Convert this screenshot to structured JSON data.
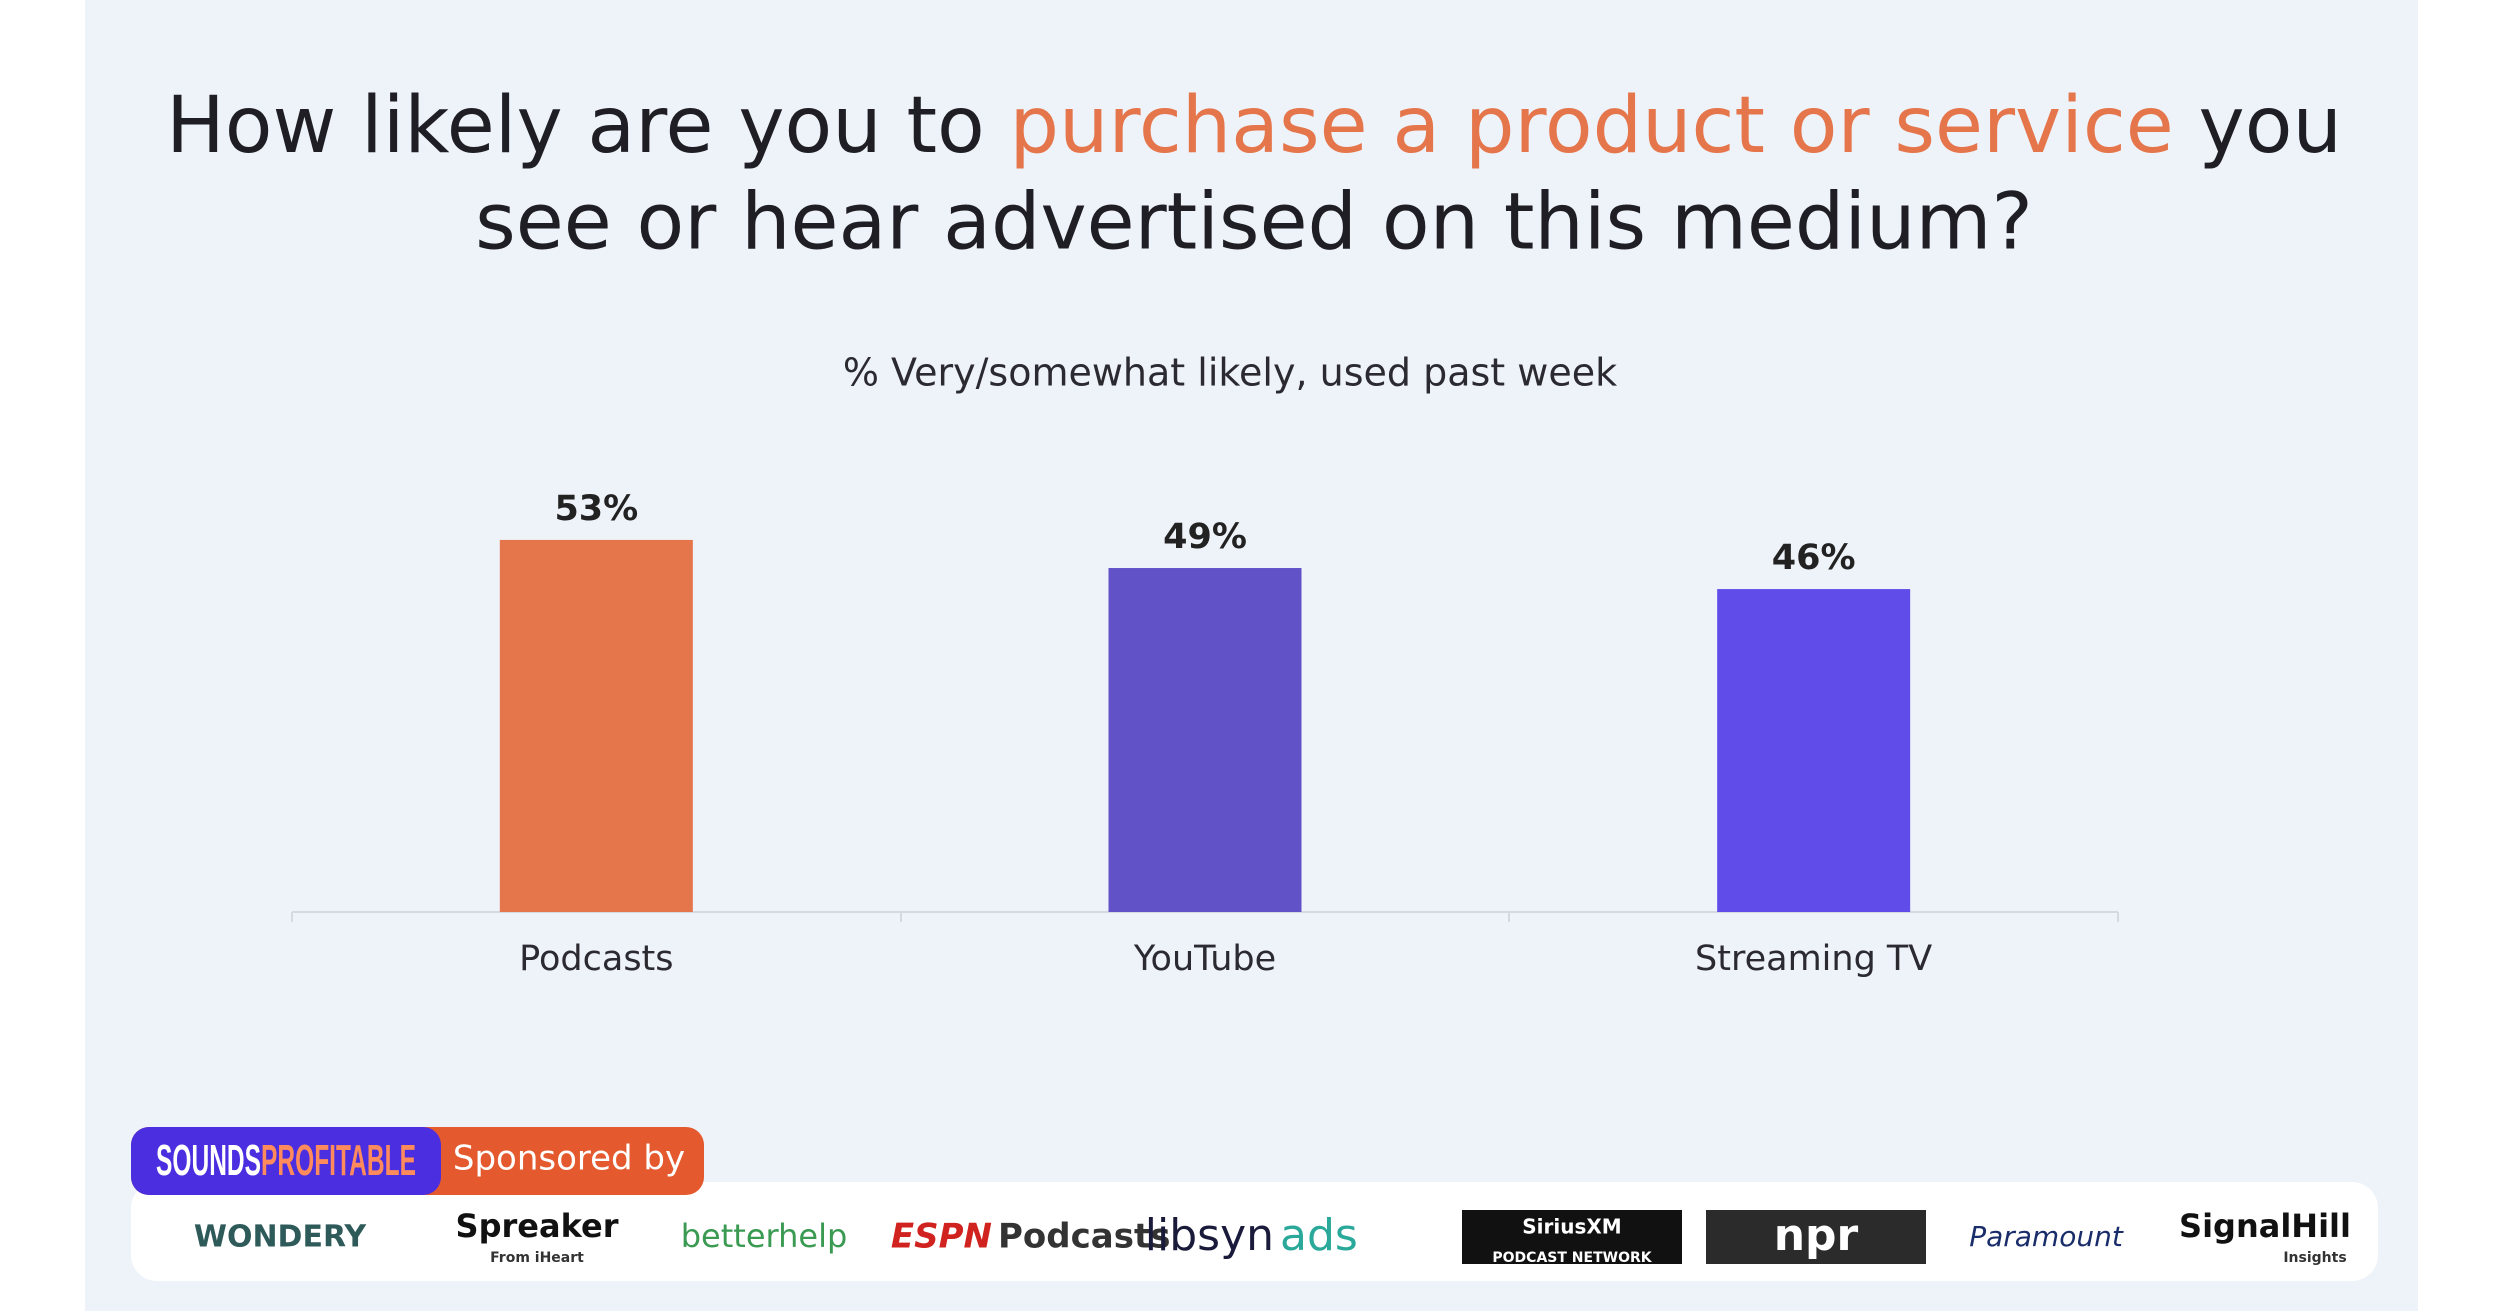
{
  "chart_data": {
    "type": "bar",
    "title": [
      "How likely are you to ",
      "purchase a product or service",
      " you",
      "see or hear advertised on this medium?"
    ],
    "subtitle": "% Very/somewhat likely, used past week",
    "categories": [
      "Podcasts",
      "YouTube",
      "Streaming TV"
    ],
    "values": [
      53,
      49,
      46
    ],
    "value_labels": [
      "53%",
      "49%",
      "46%"
    ],
    "colors": [
      "#e5754a",
      "#6153c7",
      "#604ce8"
    ]
  },
  "footer": {
    "brand": [
      "SOUNDS",
      "PROFITABLE"
    ],
    "sponsored": "Sponsored by",
    "sponsors": [
      {
        "name": "WONDERY"
      },
      {
        "name": "Spreaker",
        "sub": "From iHeart"
      },
      {
        "name": "betterhelp"
      },
      {
        "name": "ESPN",
        "sub": "Podcasts"
      },
      {
        "name": "libsyn",
        "sub": "ads"
      },
      {
        "name": "SiriusXM",
        "sub": "PODCAST NETWORK"
      },
      {
        "name": "npr"
      },
      {
        "name": "Paramount"
      },
      {
        "name": "SignalHill",
        "sub": "Insights"
      }
    ]
  }
}
